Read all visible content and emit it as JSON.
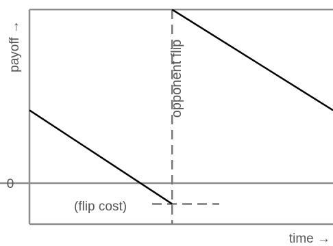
{
  "chart_data": {
    "type": "line",
    "xlabel": "time →",
    "ylabel": "payoff →",
    "zero_tick": "0",
    "annotations": {
      "opponent_flip": "opponent flip",
      "flip_cost": "(flip cost)"
    },
    "series": [
      {
        "values": [
          [
            0.0,
            0.42
          ],
          [
            0.47,
            -0.12
          ]
        ]
      },
      {
        "values": [
          [
            0.47,
            1.0
          ],
          [
            1.0,
            0.42
          ]
        ]
      }
    ],
    "reference_lines": {
      "zero_y": 0.0,
      "opponent_flip_x": 0.47,
      "flip_cost_y": -0.12
    },
    "grid": false
  },
  "colors": {
    "axis": "#8c8c8c",
    "series": "#000000",
    "text": "#555555",
    "dashed": "#777777"
  }
}
